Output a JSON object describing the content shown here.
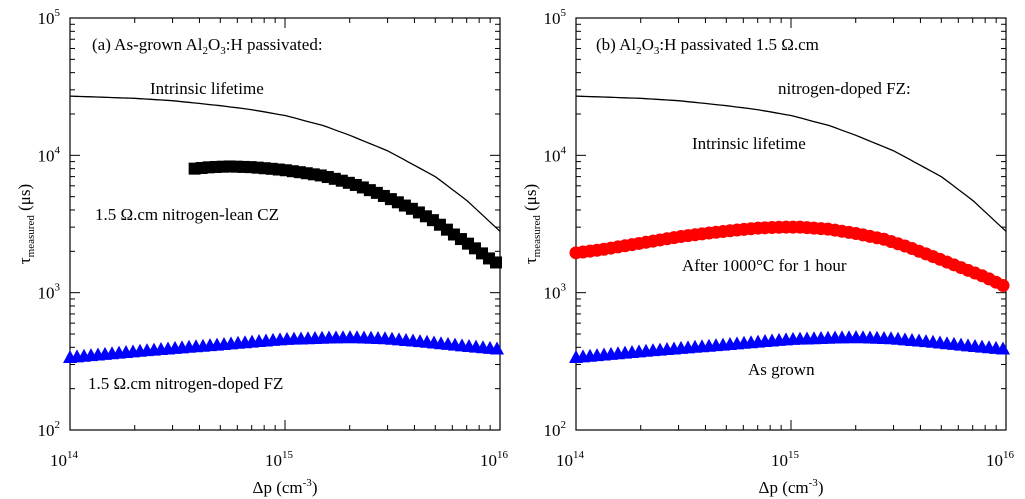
{
  "chart_data": [
    {
      "type": "scatter",
      "panel": "a",
      "title": "(a) As-grown Al₂O₃:H passivated:",
      "title_parts": {
        "pre": "(a) As-grown Al",
        "sub1": "2",
        "mid": "O",
        "sub2": "3",
        "post": ":H passivated:"
      },
      "xlabel": {
        "main": "Δp (cm",
        "sup": "-3",
        "close": ")"
      },
      "ylabel": {
        "main": "τ",
        "sub": "measured",
        "rest": " (μs)"
      },
      "x_scale": "log",
      "y_scale": "log",
      "xlim": [
        100000000000000.0,
        1e+16
      ],
      "ylim": [
        100,
        100000
      ],
      "x_ticks": [
        {
          "base": "10",
          "exp": "14",
          "value": 100000000000000.0
        },
        {
          "base": "10",
          "exp": "15",
          "value": 1000000000000000.0
        },
        {
          "base": "10",
          "exp": "16",
          "value": 1e+16
        }
      ],
      "y_ticks": [
        {
          "base": "10",
          "exp": "2",
          "value": 100
        },
        {
          "base": "10",
          "exp": "3",
          "value": 1000
        },
        {
          "base": "10",
          "exp": "4",
          "value": 10000
        },
        {
          "base": "10",
          "exp": "5",
          "value": 100000
        }
      ],
      "series": [
        {
          "name": "Intrinsic lifetime",
          "marker": "line",
          "color": "#000000",
          "x": [
            100000000000000.0,
            200000000000000.0,
            300000000000000.0,
            500000000000000.0,
            700000000000000.0,
            1000000000000000.0,
            1500000000000000.0,
            2000000000000000.0,
            3000000000000000.0,
            5000000000000000.0,
            7000000000000000.0,
            1e+16
          ],
          "y": [
            27000,
            26000,
            25000,
            23000,
            21500,
            19500,
            16500,
            14000,
            10800,
            7000,
            4700,
            2800
          ]
        },
        {
          "name": "1.5 Ω.cm nitrogen-lean CZ",
          "marker": "square",
          "color": "#000000",
          "x": [
            380000000000000.0,
            450000000000000.0,
            550000000000000.0,
            700000000000000.0,
            850000000000000.0,
            1000000000000000.0,
            1200000000000000.0,
            1500000000000000.0,
            1800000000000000.0,
            2200000000000000.0,
            2700000000000000.0,
            3300000000000000.0,
            4000000000000000.0,
            5000000000000000.0,
            6000000000000000.0,
            7500000000000000.0,
            9000000000000000.0,
            1e+16
          ],
          "y": [
            8000,
            8200,
            8300,
            8200,
            8000,
            7800,
            7500,
            7100,
            6600,
            6000,
            5300,
            4600,
            4000,
            3300,
            2700,
            2150,
            1750,
            1600
          ]
        },
        {
          "name": "1.5 Ω.cm nitrogen-doped FZ",
          "marker": "triangle",
          "color": "#0000ff",
          "x": [
            100000000000000.0,
            150000000000000.0,
            200000000000000.0,
            300000000000000.0,
            450000000000000.0,
            700000000000000.0,
            1000000000000000.0,
            1500000000000000.0,
            2000000000000000.0,
            3000000000000000.0,
            4500000000000000.0,
            7000000000000000.0,
            1e+16
          ],
          "y": [
            340,
            360,
            375,
            395,
            415,
            440,
            460,
            470,
            475,
            465,
            440,
            410,
            390
          ]
        }
      ],
      "annotations": [
        "Intrinsic lifetime",
        "1.5 Ω.cm nitrogen-lean CZ",
        "1.5 Ω.cm nitrogen-doped FZ"
      ]
    },
    {
      "type": "scatter",
      "panel": "b",
      "title": "(b) Al₂O₃:H passivated 1.5 Ω.cm nitrogen-doped FZ:",
      "title_parts": {
        "pre": "(b) Al",
        "sub1": "2",
        "mid": "O",
        "sub2": "3",
        "post": ":H passivated 1.5 Ω.cm",
        "line2": "nitrogen-doped FZ:"
      },
      "xlabel": {
        "main": "Δp (cm",
        "sup": "-3",
        "close": ")"
      },
      "ylabel": {
        "main": "τ",
        "sub": "measured",
        "rest": " (μs)"
      },
      "x_scale": "log",
      "y_scale": "log",
      "xlim": [
        100000000000000.0,
        1e+16
      ],
      "ylim": [
        100,
        100000
      ],
      "x_ticks": [
        {
          "base": "10",
          "exp": "14",
          "value": 100000000000000.0
        },
        {
          "base": "10",
          "exp": "15",
          "value": 1000000000000000.0
        },
        {
          "base": "10",
          "exp": "16",
          "value": 1e+16
        }
      ],
      "y_ticks": [
        {
          "base": "10",
          "exp": "2",
          "value": 100
        },
        {
          "base": "10",
          "exp": "3",
          "value": 1000
        },
        {
          "base": "10",
          "exp": "4",
          "value": 10000
        },
        {
          "base": "10",
          "exp": "5",
          "value": 100000
        }
      ],
      "series": [
        {
          "name": "Intrinsic lifetime",
          "marker": "line",
          "color": "#000000",
          "x": [
            100000000000000.0,
            200000000000000.0,
            300000000000000.0,
            500000000000000.0,
            700000000000000.0,
            1000000000000000.0,
            1500000000000000.0,
            2000000000000000.0,
            3000000000000000.0,
            5000000000000000.0,
            7000000000000000.0,
            1e+16
          ],
          "y": [
            27000,
            26000,
            25000,
            23000,
            21500,
            19500,
            16500,
            14000,
            10800,
            7000,
            4700,
            2800
          ]
        },
        {
          "name": "After 1000°C for 1 hour",
          "marker": "circle",
          "color": "#ff0000",
          "x": [
            100000000000000.0,
            130000000000000.0,
            170000000000000.0,
            220000000000000.0,
            300000000000000.0,
            400000000000000.0,
            550000000000000.0,
            700000000000000.0,
            900000000000000.0,
            1100000000000000.0,
            1500000000000000.0,
            2000000000000000.0,
            2700000000000000.0,
            3500000000000000.0,
            4500000000000000.0,
            6000000000000000.0,
            8000000000000000.0,
            1e+16
          ],
          "y": [
            1950,
            2050,
            2200,
            2350,
            2550,
            2700,
            2850,
            2950,
            3000,
            3000,
            2900,
            2700,
            2450,
            2150,
            1850,
            1550,
            1300,
            1100
          ]
        },
        {
          "name": "As grown",
          "marker": "triangle",
          "color": "#0000ff",
          "x": [
            100000000000000.0,
            150000000000000.0,
            200000000000000.0,
            300000000000000.0,
            450000000000000.0,
            700000000000000.0,
            1000000000000000.0,
            1500000000000000.0,
            2000000000000000.0,
            3000000000000000.0,
            4500000000000000.0,
            7000000000000000.0,
            1e+16
          ],
          "y": [
            340,
            360,
            375,
            395,
            415,
            440,
            460,
            470,
            475,
            465,
            440,
            410,
            390
          ]
        }
      ],
      "annotations": [
        "Intrinsic lifetime",
        "After 1000°C for 1 hour",
        "As grown"
      ]
    }
  ]
}
